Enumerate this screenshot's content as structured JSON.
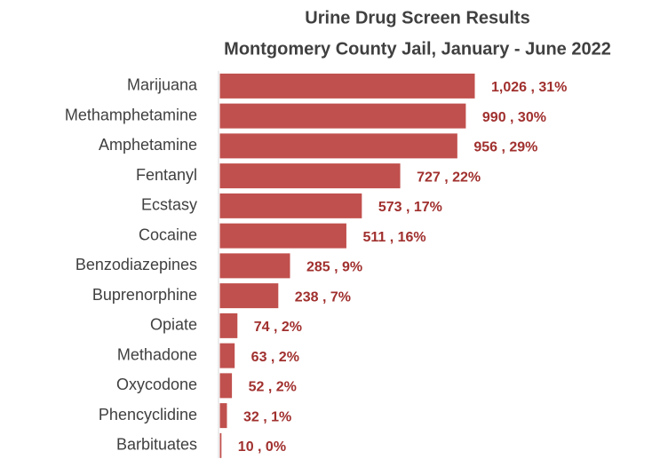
{
  "chart_data": {
    "type": "bar",
    "orientation": "horizontal",
    "title": "Urine Drug Screen Results",
    "subtitle": "Montgomery County Jail, January - June 2022",
    "categories": [
      "Marijuana",
      "Methamphetamine",
      "Amphetamine",
      "Fentanyl",
      "Ecstasy",
      "Cocaine",
      "Benzodiazepines",
      "Buprenorphine",
      "Opiate",
      "Methadone",
      "Oxycodone",
      "Phencyclidine",
      "Barbituates"
    ],
    "values": [
      1026,
      990,
      956,
      727,
      573,
      511,
      285,
      238,
      74,
      63,
      52,
      32,
      10
    ],
    "value_labels": [
      "1,026 , 31%",
      "990 , 30%",
      "956 , 29%",
      "727 , 22%",
      "573 , 17%",
      "511 , 16%",
      "285 , 9%",
      "238 , 7%",
      "74 , 2%",
      "63 , 2%",
      "52 , 2%",
      "32 , 1%",
      "10 , 0%"
    ],
    "color": "#c0504d"
  }
}
